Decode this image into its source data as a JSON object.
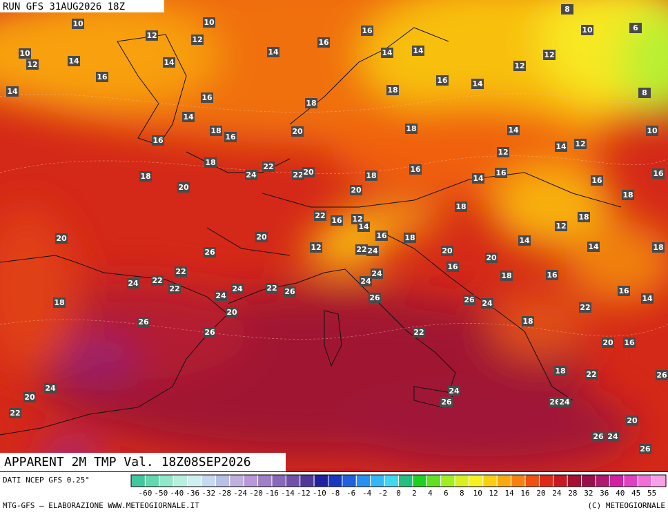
{
  "header": "RUN GFS 31AUG2026 18Z",
  "title": "APPARENT 2M TMP Val. 18Z08SEP2026",
  "source": "DATI NCEP GFS 0.25°",
  "footer_left": "MTG-GFS — ELABORAZIONE WWW.METEOGIORNALE.IT",
  "footer_right": "(C) METEOGIORNALE",
  "legend": {
    "ticks": [
      -60,
      -50,
      -40,
      -36,
      -32,
      -28,
      -24,
      -20,
      -16,
      -14,
      -12,
      -10,
      -8,
      -6,
      -4,
      -2,
      0,
      2,
      4,
      6,
      8,
      10,
      12,
      14,
      16,
      20,
      24,
      28,
      32,
      36,
      40,
      45,
      55
    ],
    "colors": [
      "#40c8a0",
      "#60d8b0",
      "#90e8c8",
      "#b8f0e0",
      "#d0f0f0",
      "#c8d8f0",
      "#b8c0e8",
      "#c0b0e0",
      "#b898d8",
      "#a080c8",
      "#8868b8",
      "#7050a8",
      "#503898",
      "#2020a0",
      "#1838c0",
      "#2060e0",
      "#2890f0",
      "#30b8f8",
      "#40d8f0",
      "#20c080",
      "#20d020",
      "#60e020",
      "#a0f020",
      "#d8f020",
      "#f8f020",
      "#f8d010",
      "#f8a810",
      "#f88010",
      "#f05010",
      "#e02818",
      "#c81820",
      "#a81030",
      "#981048",
      "#b01870",
      "#d020a0",
      "#e040c0",
      "#f070d8",
      "#f8a0e8"
    ]
  },
  "point_labels": [
    10,
    10,
    12,
    12,
    10,
    12,
    14,
    14,
    14,
    16,
    16,
    14,
    14,
    8,
    10,
    6,
    12,
    12,
    16,
    14,
    16,
    18,
    16,
    14,
    8,
    18,
    14,
    18,
    16,
    20,
    16,
    18,
    14,
    10,
    14,
    12,
    12,
    18,
    22,
    24,
    22,
    20,
    18,
    16,
    18,
    14,
    16,
    16,
    16,
    20,
    20,
    18,
    18,
    22,
    16,
    12,
    14,
    18,
    12,
    20,
    20,
    16,
    18,
    14,
    14,
    18,
    12,
    22,
    24,
    26,
    20,
    20,
    22,
    16,
    18,
    16,
    24,
    24,
    24,
    22,
    22,
    24,
    22,
    26,
    24,
    26,
    16,
    14,
    26,
    24,
    22,
    18,
    20,
    26,
    18,
    26,
    22,
    20,
    16,
    18,
    22,
    26,
    24,
    24,
    26,
    26,
    24,
    20,
    22,
    20,
    26,
    24,
    26
  ]
}
